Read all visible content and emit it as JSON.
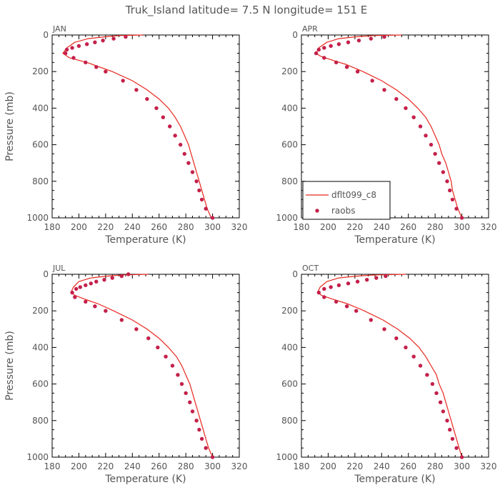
{
  "figure": {
    "title": "Truk_Island   latitude= 7.5 N longitude= 151 E"
  },
  "legend": {
    "model_label": "dflt099_c8",
    "obs_label": "raobs",
    "panel": "APR",
    "placement": "lower-left of APR panel"
  },
  "colors": {
    "model_line": "#e8281e",
    "obs_marker": "#c4204a",
    "axis": "#000000",
    "text": "#555555"
  },
  "chart_data": [
    {
      "type": "line",
      "panel": "JAN",
      "xlabel": "Temperature (K)",
      "ylabel": "Pressure (mb)",
      "xlim": [
        180,
        320
      ],
      "ylim": [
        1000,
        0
      ],
      "x_ticks": [
        180,
        200,
        220,
        240,
        260,
        280,
        300,
        320
      ],
      "y_ticks": [
        0,
        200,
        400,
        600,
        800,
        1000
      ],
      "series": [
        {
          "name": "dflt099_c8",
          "kind": "line",
          "points": [
            [
              248,
              0
            ],
            [
              230,
              3
            ],
            [
              219,
              10
            ],
            [
              207,
              20
            ],
            [
              197,
              40
            ],
            [
              191,
              70
            ],
            [
              188,
              100
            ],
            [
              193,
              125
            ],
            [
              206,
              150
            ],
            [
              225,
              200
            ],
            [
              240,
              250
            ],
            [
              251,
              300
            ],
            [
              260,
              350
            ],
            [
              267,
              400
            ],
            [
              272,
              450
            ],
            [
              276,
              500
            ],
            [
              279,
              550
            ],
            [
              282,
              600
            ],
            [
              284,
              650
            ],
            [
              286,
              700
            ],
            [
              288,
              750
            ],
            [
              290,
              800
            ],
            [
              292,
              850
            ],
            [
              294,
              900
            ],
            [
              296,
              950
            ],
            [
              299,
              1000
            ]
          ]
        },
        {
          "name": "raobs",
          "kind": "scatter",
          "points": [
            [
              235,
              10
            ],
            [
              226,
              20
            ],
            [
              218,
              30
            ],
            [
              212,
              40
            ],
            [
              206,
              50
            ],
            [
              200,
              60
            ],
            [
              195,
              70
            ],
            [
              191,
              80
            ],
            [
              190,
              100
            ],
            [
              196,
              125
            ],
            [
              205,
              150
            ],
            [
              213,
              175
            ],
            [
              220,
              200
            ],
            [
              233,
              250
            ],
            [
              243,
              300
            ],
            [
              251,
              350
            ],
            [
              258,
              400
            ],
            [
              263,
              450
            ],
            [
              268,
              500
            ],
            [
              272,
              550
            ],
            [
              276,
              600
            ],
            [
              279,
              650
            ],
            [
              282,
              700
            ],
            [
              285,
              750
            ],
            [
              288,
              800
            ],
            [
              290,
              850
            ],
            [
              292,
              900
            ],
            [
              295,
              950
            ],
            [
              300,
              1000
            ]
          ]
        }
      ]
    },
    {
      "type": "line",
      "panel": "APR",
      "xlabel": "Temperature (K)",
      "ylabel": "",
      "xlim": [
        180,
        320
      ],
      "ylim": [
        1000,
        0
      ],
      "x_ticks": [
        180,
        200,
        220,
        240,
        260,
        280,
        300,
        320
      ],
      "y_ticks": [
        0,
        200,
        400,
        600,
        800,
        1000
      ],
      "series": [
        {
          "name": "dflt099_c8",
          "kind": "line",
          "points": [
            [
              255,
              0
            ],
            [
              234,
              3
            ],
            [
              220,
              10
            ],
            [
              208,
              20
            ],
            [
              199,
              40
            ],
            [
              193,
              70
            ],
            [
              191,
              100
            ],
            [
              194,
              115
            ],
            [
              202,
              135
            ],
            [
              213,
              160
            ],
            [
              226,
              200
            ],
            [
              240,
              250
            ],
            [
              251,
              300
            ],
            [
              260,
              350
            ],
            [
              267,
              400
            ],
            [
              273,
              450
            ],
            [
              277,
              500
            ],
            [
              280,
              550
            ],
            [
              283,
              600
            ],
            [
              285,
              650
            ],
            [
              288,
              700
            ],
            [
              290,
              750
            ],
            [
              292,
              800
            ],
            [
              293,
              850
            ],
            [
              295,
              900
            ],
            [
              297,
              950
            ],
            [
              300,
              1000
            ]
          ]
        },
        {
          "name": "raobs",
          "kind": "scatter",
          "points": [
            [
              242,
              10
            ],
            [
              232,
              20
            ],
            [
              223,
              30
            ],
            [
              215,
              40
            ],
            [
              208,
              50
            ],
            [
              202,
              60
            ],
            [
              197,
              70
            ],
            [
              193,
              80
            ],
            [
              191,
              100
            ],
            [
              197,
              125
            ],
            [
              206,
              150
            ],
            [
              214,
              175
            ],
            [
              222,
              200
            ],
            [
              233,
              250
            ],
            [
              242,
              300
            ],
            [
              251,
              350
            ],
            [
              258,
              400
            ],
            [
              264,
              450
            ],
            [
              269,
              500
            ],
            [
              273,
              550
            ],
            [
              277,
              600
            ],
            [
              280,
              650
            ],
            [
              283,
              700
            ],
            [
              286,
              750
            ],
            [
              289,
              800
            ],
            [
              291,
              850
            ],
            [
              293,
              900
            ],
            [
              296,
              950
            ],
            [
              300,
              1000
            ]
          ]
        }
      ]
    },
    {
      "type": "line",
      "panel": "JUL",
      "xlabel": "Temperature (K)",
      "ylabel": "Pressure (mb)",
      "xlim": [
        180,
        320
      ],
      "ylim": [
        1000,
        0
      ],
      "x_ticks": [
        180,
        200,
        220,
        240,
        260,
        280,
        300,
        320
      ],
      "y_ticks": [
        0,
        200,
        400,
        600,
        800,
        1000
      ],
      "series": [
        {
          "name": "dflt099_c8",
          "kind": "line",
          "points": [
            [
              252,
              0
            ],
            [
              233,
              3
            ],
            [
              221,
              10
            ],
            [
              209,
              20
            ],
            [
              200,
              40
            ],
            [
              196,
              70
            ],
            [
              194,
              100
            ],
            [
              197,
              115
            ],
            [
              204,
              135
            ],
            [
              214,
              160
            ],
            [
              226,
              200
            ],
            [
              240,
              250
            ],
            [
              251,
              300
            ],
            [
              260,
              350
            ],
            [
              267,
              400
            ],
            [
              273,
              450
            ],
            [
              277,
              500
            ],
            [
              280,
              550
            ],
            [
              283,
              600
            ],
            [
              285,
              650
            ],
            [
              287,
              700
            ],
            [
              289,
              750
            ],
            [
              291,
              800
            ],
            [
              293,
              850
            ],
            [
              295,
              900
            ],
            [
              297,
              950
            ],
            [
              300,
              1000
            ]
          ]
        },
        {
          "name": "raobs",
          "kind": "scatter",
          "points": [
            [
              237,
              0
            ],
            [
              232,
              10
            ],
            [
              225,
              20
            ],
            [
              219,
              30
            ],
            [
              213,
              40
            ],
            [
              209,
              50
            ],
            [
              205,
              60
            ],
            [
              201,
              70
            ],
            [
              198,
              80
            ],
            [
              195,
              100
            ],
            [
              197,
              125
            ],
            [
              205,
              150
            ],
            [
              212,
              175
            ],
            [
              220,
              200
            ],
            [
              232,
              250
            ],
            [
              243,
              300
            ],
            [
              252,
              350
            ],
            [
              259,
              400
            ],
            [
              265,
              450
            ],
            [
              270,
              500
            ],
            [
              274,
              550
            ],
            [
              277,
              600
            ],
            [
              280,
              650
            ],
            [
              283,
              700
            ],
            [
              285,
              750
            ],
            [
              288,
              800
            ],
            [
              290,
              850
            ],
            [
              292,
              900
            ],
            [
              295,
              950
            ],
            [
              300,
              1000
            ]
          ]
        }
      ]
    },
    {
      "type": "line",
      "panel": "OCT",
      "xlabel": "Temperature (K)",
      "ylabel": "",
      "xlim": [
        180,
        320
      ],
      "ylim": [
        1000,
        0
      ],
      "x_ticks": [
        180,
        200,
        220,
        240,
        260,
        280,
        300,
        320
      ],
      "y_ticks": [
        0,
        200,
        400,
        600,
        800,
        1000
      ],
      "series": [
        {
          "name": "dflt099_c8",
          "kind": "line",
          "points": [
            [
              258,
              0
            ],
            [
              236,
              3
            ],
            [
              221,
              10
            ],
            [
              208,
              20
            ],
            [
              199,
              40
            ],
            [
              194,
              70
            ],
            [
              192,
              100
            ],
            [
              195,
              115
            ],
            [
              203,
              135
            ],
            [
              214,
              160
            ],
            [
              227,
              200
            ],
            [
              241,
              250
            ],
            [
              252,
              300
            ],
            [
              261,
              350
            ],
            [
              268,
              400
            ],
            [
              273,
              450
            ],
            [
              277,
              500
            ],
            [
              281,
              550
            ],
            [
              283,
              600
            ],
            [
              286,
              650
            ],
            [
              288,
              700
            ],
            [
              290,
              750
            ],
            [
              292,
              800
            ],
            [
              294,
              850
            ],
            [
              296,
              900
            ],
            [
              298,
              950
            ],
            [
              300,
              1000
            ]
          ]
        },
        {
          "name": "raobs",
          "kind": "scatter",
          "points": [
            [
              243,
              10
            ],
            [
              236,
              20
            ],
            [
              229,
              30
            ],
            [
              222,
              40
            ],
            [
              215,
              50
            ],
            [
              208,
              60
            ],
            [
              202,
              70
            ],
            [
              197,
              80
            ],
            [
              193,
              100
            ],
            [
              197,
              125
            ],
            [
              206,
              150
            ],
            [
              214,
              175
            ],
            [
              221,
              200
            ],
            [
              232,
              250
            ],
            [
              242,
              300
            ],
            [
              251,
              350
            ],
            [
              258,
              400
            ],
            [
              264,
              450
            ],
            [
              269,
              500
            ],
            [
              274,
              550
            ],
            [
              278,
              600
            ],
            [
              281,
              650
            ],
            [
              284,
              700
            ],
            [
              286,
              750
            ],
            [
              289,
              800
            ],
            [
              291,
              850
            ],
            [
              293,
              900
            ],
            [
              296,
              950
            ],
            [
              300,
              1000
            ]
          ]
        }
      ]
    }
  ]
}
